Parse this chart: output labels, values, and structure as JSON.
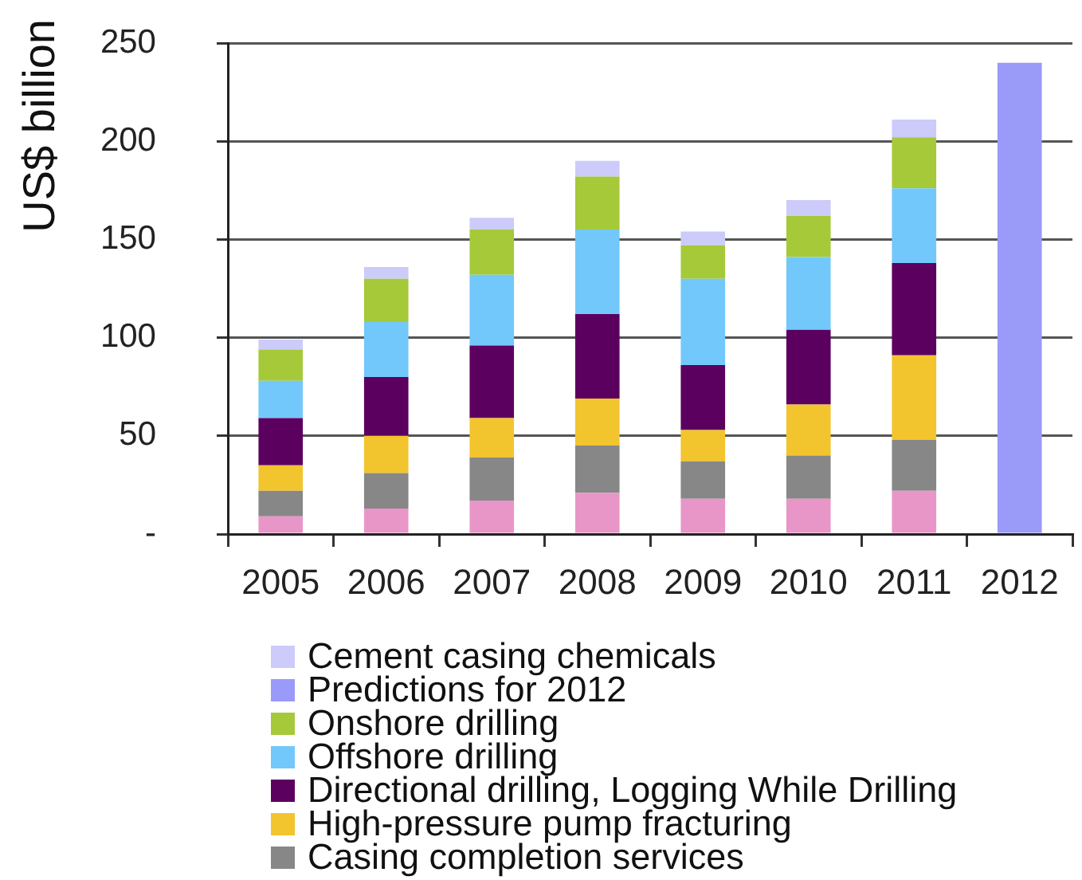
{
  "chart_data": {
    "type": "bar",
    "ylabel": "US$ billion",
    "categories": [
      "2005",
      "2006",
      "2007",
      "2008",
      "2009",
      "2010",
      "2011",
      "2012"
    ],
    "stacked": true,
    "series": [
      {
        "color": "#e896c8",
        "values": [
          9,
          13,
          17,
          21,
          18,
          18,
          22,
          null
        ]
      },
      {
        "name": "Casing completion services",
        "color": "#878787",
        "values": [
          13,
          18,
          22,
          24,
          19,
          22,
          26,
          null
        ]
      },
      {
        "name": "High-pressure pump fracturing",
        "color": "#f2c42e",
        "values": [
          13,
          19,
          20,
          24,
          16,
          26,
          43,
          null
        ]
      },
      {
        "name": "Directional drilling, Logging While Drilling",
        "color": "#5c0060",
        "values": [
          24,
          30,
          37,
          43,
          33,
          38,
          47,
          null
        ]
      },
      {
        "name": "Offshore drilling",
        "color": "#72c8fa",
        "values": [
          19,
          28,
          36,
          43,
          44,
          37,
          38,
          null
        ]
      },
      {
        "name": "Onshore drilling",
        "color": "#a6c93a",
        "values": [
          16,
          22,
          23,
          27,
          17,
          21,
          26,
          null
        ]
      },
      {
        "name": "Predictions for 2012",
        "color": "#9a9af8",
        "values": [
          null,
          null,
          null,
          null,
          null,
          null,
          null,
          240
        ]
      },
      {
        "name": "Cement casing chemicals",
        "color": "#cccbfa",
        "values": [
          5,
          6,
          6,
          8,
          7,
          8,
          9,
          null
        ]
      }
    ],
    "ylim": [
      0,
      250
    ],
    "yticks": [
      {
        "value": 0,
        "label": "-"
      },
      50,
      100,
      150,
      200,
      250
    ],
    "grid": "y",
    "legend": "bottom"
  }
}
